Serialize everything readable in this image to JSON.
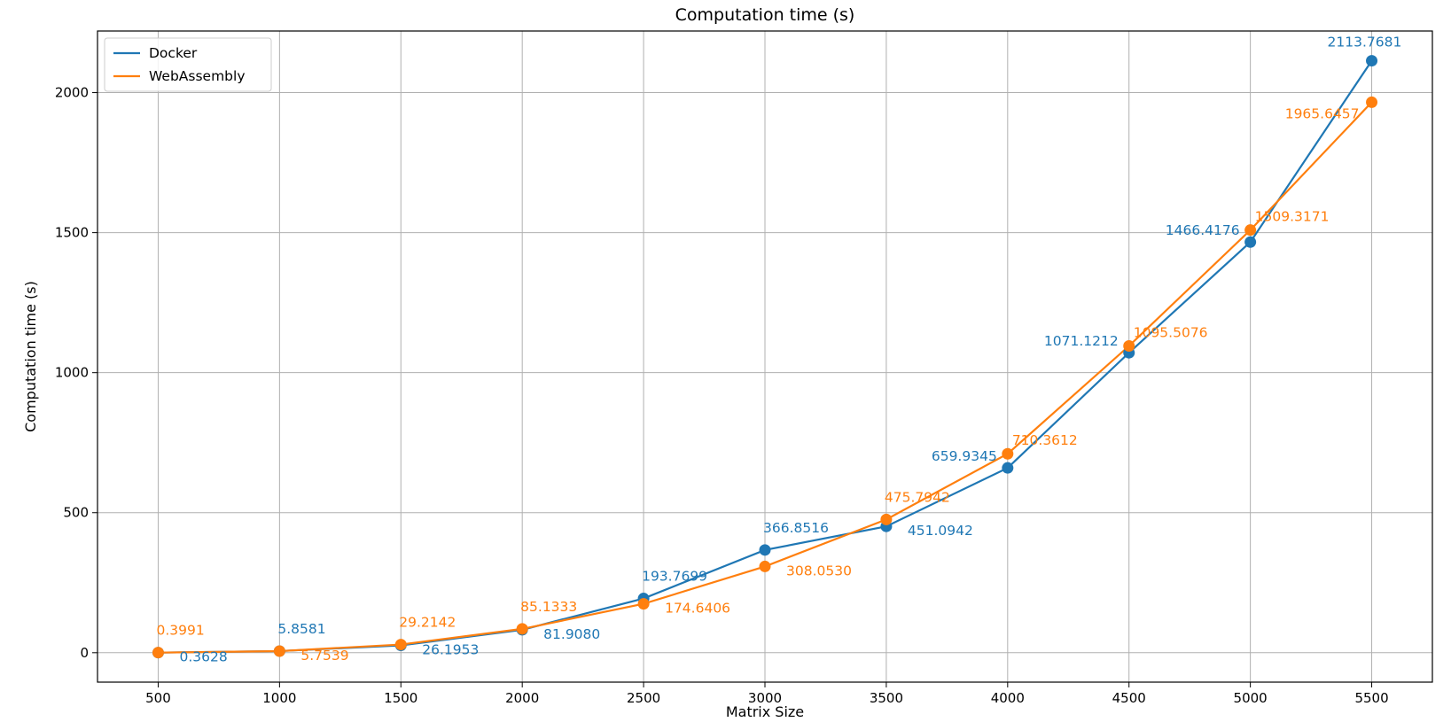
{
  "chart_data": {
    "type": "line",
    "title": "Computation time (s)",
    "xlabel": "Matrix Size",
    "ylabel": "Computation time (s)",
    "x": [
      500,
      1000,
      1500,
      2000,
      2500,
      3000,
      3500,
      4000,
      4500,
      5000,
      5500
    ],
    "xticks": [
      500,
      1000,
      1500,
      2000,
      2500,
      3000,
      3500,
      4000,
      4500,
      5000,
      5500
    ],
    "yticks": [
      0,
      500,
      1000,
      1500,
      2000
    ],
    "xlim": [
      250,
      5750
    ],
    "ylim": [
      -105,
      2220
    ],
    "grid": true,
    "legend": "top-left",
    "series": [
      {
        "name": "Docker",
        "color": "#1f77b4",
        "values": [
          0.3628,
          5.8581,
          26.1953,
          81.908,
          193.7699,
          366.8516,
          451.0942,
          659.9345,
          1071.1212,
          1466.4176,
          2113.7681
        ],
        "labels": [
          "0.3628",
          "5.8581",
          "26.1953",
          "81.9080",
          "193.7699",
          "366.8516",
          "451.0942",
          "659.9345",
          "1071.1212",
          "1466.4176",
          "2113.7681"
        ]
      },
      {
        "name": "WebAssembly",
        "color": "#ff7f0e",
        "values": [
          0.3991,
          5.7539,
          29.2142,
          85.1333,
          174.6406,
          308.053,
          475.7942,
          710.3612,
          1095.5076,
          1509.3171,
          1965.6457
        ],
        "labels": [
          "0.3991",
          "5.7539",
          "29.2142",
          "85.1333",
          "174.6406",
          "308.0530",
          "475.7942",
          "710.3612",
          "1095.5076",
          "1509.3171",
          "1965.6457"
        ]
      }
    ]
  }
}
